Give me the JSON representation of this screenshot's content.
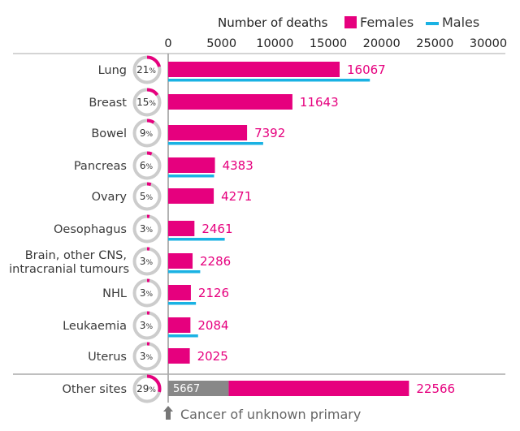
{
  "chart_data": {
    "type": "bar",
    "title": "Number of deaths",
    "xlim": [
      0,
      30000
    ],
    "ticks": [
      "0",
      "5000",
      "10000",
      "15000",
      "20000",
      "25000",
      "30000"
    ],
    "legend": [
      {
        "name": "Females",
        "color": "#e6007e"
      },
      {
        "name": "Males",
        "color": "#1ab2e3"
      }
    ],
    "categories": [
      "Lung",
      "Breast",
      "Bowel",
      "Pancreas",
      "Ovary",
      "Oesophagus",
      "Brain, other CNS, intracranial tumours",
      "NHL",
      "Leukaemia",
      "Uterus",
      "Other sites"
    ],
    "category_lines": [
      [
        "Lung"
      ],
      [
        "Breast"
      ],
      [
        "Bowel"
      ],
      [
        "Pancreas"
      ],
      [
        "Ovary"
      ],
      [
        "Oesophagus"
      ],
      [
        "Brain, other CNS,",
        "intracranial tumours"
      ],
      [
        "NHL"
      ],
      [
        "Leukaemia"
      ],
      [
        "Uterus"
      ],
      [
        "Other sites"
      ]
    ],
    "percent_labels": [
      "21",
      "15",
      "9",
      "6",
      "5",
      "3",
      "3",
      "3",
      "3",
      "3",
      "29"
    ],
    "percent_values": [
      21,
      15,
      9,
      6,
      5,
      3,
      3,
      3,
      3,
      3,
      29
    ],
    "series": [
      {
        "name": "Females",
        "values": [
          16067,
          11643,
          7392,
          4383,
          4271,
          2461,
          2286,
          2126,
          2084,
          2025,
          22566
        ]
      },
      {
        "name": "Males",
        "values": [
          18900,
          null,
          8900,
          4300,
          null,
          5300,
          3000,
          2600,
          2800,
          null,
          null
        ]
      }
    ],
    "value_labels": [
      "16067",
      "11643",
      "7392",
      "4383",
      "4271",
      "2461",
      "2286",
      "2126",
      "2084",
      "2025",
      "22566"
    ],
    "unknown_primary": {
      "value": 5667,
      "label": "5667",
      "note": "Cancer of unknown primary"
    },
    "colors": {
      "female": "#e6007e",
      "male": "#1ab2e3",
      "unknown": "#888888",
      "ring": "#cccccc",
      "axis": "#999999",
      "divider": "#aaaaaa"
    }
  }
}
